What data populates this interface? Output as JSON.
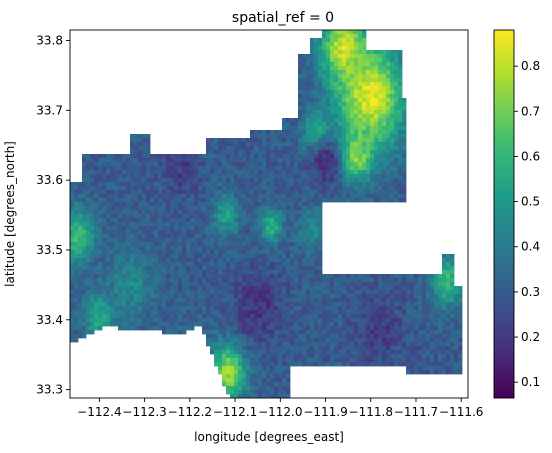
{
  "chart_data": {
    "type": "heatmap",
    "title": "spatial_ref = 0",
    "xlabel": "longitude [degrees_east]",
    "ylabel": "latitude [degrees_north]",
    "xlim": [
      -112.465,
      -111.585
    ],
    "ylim": [
      33.288,
      33.815
    ],
    "x_ticks": [
      -112.4,
      -112.3,
      -112.2,
      -112.1,
      -112.0,
      -111.9,
      -111.8,
      -111.7,
      -111.6
    ],
    "x_tick_labels": [
      "−112.4",
      "−112.3",
      "−112.2",
      "−112.1",
      "−112.0",
      "−111.9",
      "−111.8",
      "−111.7",
      "−111.6"
    ],
    "y_ticks": [
      33.3,
      33.4,
      33.5,
      33.6,
      33.7,
      33.8
    ],
    "y_tick_labels": [
      "33.3",
      "33.4",
      "33.5",
      "33.6",
      "33.7",
      "33.8"
    ],
    "colorbar": {
      "colormap": "viridis",
      "range": [
        0.065,
        0.88
      ],
      "ticks": [
        0.1,
        0.2,
        0.3,
        0.4,
        0.5,
        0.6,
        0.7,
        0.8
      ],
      "tick_labels": [
        "0.1",
        "0.2",
        "0.3",
        "0.4",
        "0.5",
        "0.6",
        "0.7",
        "0.8"
      ]
    },
    "grid": false,
    "background_value": null,
    "region_outline_lonlat": [
      [
        -112.44,
        33.635
      ],
      [
        -112.335,
        33.635
      ],
      [
        -112.335,
        33.665
      ],
      [
        -112.29,
        33.665
      ],
      [
        -112.29,
        33.638
      ],
      [
        -112.16,
        33.638
      ],
      [
        -112.16,
        33.658
      ],
      [
        -112.07,
        33.658
      ],
      [
        -112.07,
        33.672
      ],
      [
        -111.995,
        33.672
      ],
      [
        -111.995,
        33.69
      ],
      [
        -111.965,
        33.69
      ],
      [
        -111.965,
        33.778
      ],
      [
        -111.935,
        33.778
      ],
      [
        -111.935,
        33.805
      ],
      [
        -111.905,
        33.805
      ],
      [
        -111.905,
        33.815
      ],
      [
        -111.81,
        33.815
      ],
      [
        -111.81,
        33.785
      ],
      [
        -111.735,
        33.785
      ],
      [
        -111.735,
        33.72
      ],
      [
        -111.725,
        33.72
      ],
      [
        -111.725,
        33.57
      ],
      [
        -111.905,
        33.57
      ],
      [
        -111.905,
        33.468
      ],
      [
        -111.64,
        33.468
      ],
      [
        -111.64,
        33.495
      ],
      [
        -111.615,
        33.495
      ],
      [
        -111.615,
        33.45
      ],
      [
        -111.594,
        33.45
      ],
      [
        -111.594,
        33.325
      ],
      [
        -111.655,
        33.325
      ],
      [
        -111.655,
        33.322
      ],
      [
        -111.72,
        33.322
      ],
      [
        -111.72,
        33.335
      ],
      [
        -111.91,
        33.335
      ],
      [
        -111.91,
        33.333
      ],
      [
        -111.98,
        33.333
      ],
      [
        -111.98,
        33.29
      ],
      [
        -112.115,
        33.29
      ],
      [
        -112.155,
        33.355
      ],
      [
        -112.175,
        33.395
      ],
      [
        -112.21,
        33.38
      ],
      [
        -112.31,
        33.385
      ],
      [
        -112.39,
        33.39
      ],
      [
        -112.44,
        33.375
      ],
      [
        -112.465,
        33.365
      ],
      [
        -112.465,
        33.6
      ],
      [
        -112.44,
        33.6
      ]
    ],
    "hotspots": [
      {
        "lon": -111.8,
        "lat": 33.72,
        "value": 0.85,
        "spread": 0.075
      },
      {
        "lon": -111.86,
        "lat": 33.79,
        "value": 0.82,
        "spread": 0.05
      },
      {
        "lon": -111.83,
        "lat": 33.635,
        "value": 0.74,
        "spread": 0.035
      },
      {
        "lon": -112.115,
        "lat": 33.325,
        "value": 0.76,
        "spread": 0.04
      },
      {
        "lon": -112.02,
        "lat": 33.535,
        "value": 0.58,
        "spread": 0.025
      },
      {
        "lon": -112.12,
        "lat": 33.55,
        "value": 0.52,
        "spread": 0.03
      },
      {
        "lon": -111.63,
        "lat": 33.455,
        "value": 0.62,
        "spread": 0.035
      },
      {
        "lon": -112.45,
        "lat": 33.52,
        "value": 0.62,
        "spread": 0.04
      },
      {
        "lon": -112.4,
        "lat": 33.405,
        "value": 0.55,
        "spread": 0.035
      },
      {
        "lon": -112.33,
        "lat": 33.45,
        "value": 0.45,
        "spread": 0.05
      },
      {
        "lon": -112.2,
        "lat": 33.35,
        "value": 0.45,
        "spread": 0.04
      },
      {
        "lon": -111.93,
        "lat": 33.53,
        "value": 0.45,
        "spread": 0.03
      },
      {
        "lon": -111.92,
        "lat": 33.67,
        "value": 0.55,
        "spread": 0.03
      },
      {
        "lon": -111.9,
        "lat": 33.625,
        "value": 0.15,
        "spread": 0.03
      },
      {
        "lon": -112.22,
        "lat": 33.62,
        "value": 0.2,
        "spread": 0.04
      },
      {
        "lon": -112.05,
        "lat": 33.42,
        "value": 0.18,
        "spread": 0.05
      },
      {
        "lon": -111.78,
        "lat": 33.39,
        "value": 0.2,
        "spread": 0.05
      }
    ],
    "base_value": 0.3
  }
}
